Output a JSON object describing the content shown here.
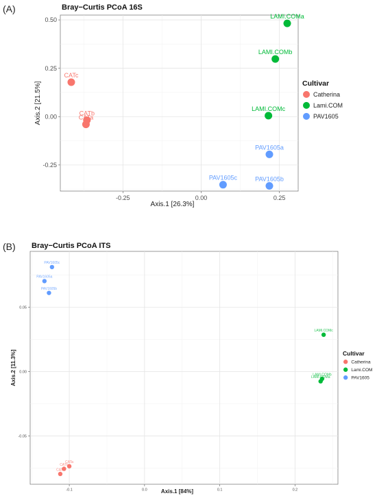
{
  "panels": [
    {
      "label": "(A)",
      "chart_data": {
        "type": "scatter",
        "title": "Bray−Curtis PCoA 16S",
        "xlabel": "Axis.1   [26.3%]",
        "ylabel": "Axis.2   [21.5%]",
        "xlim": [
          -0.45,
          0.31
        ],
        "ylim": [
          -0.385,
          0.525
        ],
        "xticks": [
          {
            "v": -0.25,
            "t": "-0.25"
          },
          {
            "v": 0.0,
            "t": "0.00"
          },
          {
            "v": 0.25,
            "t": "0.25"
          }
        ],
        "yticks": [
          {
            "v": -0.25,
            "t": "-0.25"
          },
          {
            "v": 0.0,
            "t": "0.00"
          },
          {
            "v": 0.25,
            "t": "0.25"
          },
          {
            "v": 0.5,
            "t": "0.50"
          }
        ],
        "grid": true,
        "legend": {
          "title": "Cultivar",
          "position": "right"
        },
        "series": [
          {
            "name": "Catherina",
            "color": "#F8766D",
            "points": [
              {
                "x": -0.415,
                "y": 0.178,
                "label": "CATc"
              },
              {
                "x": -0.365,
                "y": -0.018,
                "label": "CATb"
              },
              {
                "x": -0.368,
                "y": -0.04,
                "label": "CATa"
              }
            ]
          },
          {
            "name": "Lami.COM",
            "color": "#00BA38",
            "points": [
              {
                "x": 0.275,
                "y": 0.482,
                "label": "LAMI.COMa"
              },
              {
                "x": 0.237,
                "y": 0.298,
                "label": "LAMI.COMb"
              },
              {
                "x": 0.215,
                "y": 0.005,
                "label": "LAMI.COMc"
              }
            ]
          },
          {
            "name": "PAV1605",
            "color": "#619CFF",
            "points": [
              {
                "x": 0.218,
                "y": -0.195,
                "label": "PAV1605a"
              },
              {
                "x": 0.218,
                "y": -0.358,
                "label": "PAV1605b"
              },
              {
                "x": 0.07,
                "y": -0.352,
                "label": "PAV1605c"
              }
            ]
          }
        ]
      }
    },
    {
      "label": "(B)",
      "chart_data": {
        "type": "scatter",
        "title": "Bray−Curtis PCoA ITS",
        "xlabel": "Axis.1   [84%]",
        "ylabel": "Axis.2   [11.3%]",
        "xlim": [
          -0.152,
          0.257
        ],
        "ylim": [
          -0.0875,
          0.0935
        ],
        "xticks": [
          {
            "v": -0.1,
            "t": "-0.1"
          },
          {
            "v": 0.0,
            "t": "0.0"
          },
          {
            "v": 0.1,
            "t": "0.1"
          },
          {
            "v": 0.2,
            "t": "0.2"
          }
        ],
        "yticks": [
          {
            "v": -0.05,
            "t": "-0.05"
          },
          {
            "v": 0.0,
            "t": "0.00"
          },
          {
            "v": 0.05,
            "t": "0.05"
          }
        ],
        "grid": true,
        "legend": {
          "title": "Cultivar",
          "position": "right"
        },
        "series": [
          {
            "name": "Catherina",
            "color": "#F8766D",
            "points": [
              {
                "x": -0.1,
                "y": -0.0735,
                "label": "CATa"
              },
              {
                "x": -0.107,
                "y": -0.0755,
                "label": "CATb"
              },
              {
                "x": -0.112,
                "y": -0.0795,
                "label": "CATc"
              }
            ]
          },
          {
            "name": "Lami.COM",
            "color": "#00BA38",
            "points": [
              {
                "x": 0.238,
                "y": 0.0287,
                "label": "LAMI.COMc"
              },
              {
                "x": 0.236,
                "y": -0.0055,
                "label": "LAMI.COMb"
              },
              {
                "x": 0.234,
                "y": -0.0075,
                "label": "LAMI.COMa"
              }
            ]
          },
          {
            "name": "PAV1605",
            "color": "#619CFF",
            "points": [
              {
                "x": -0.123,
                "y": 0.0813,
                "label": "PAV1605c"
              },
              {
                "x": -0.133,
                "y": 0.0704,
                "label": "PAV1605a"
              },
              {
                "x": -0.127,
                "y": 0.0612,
                "label": "PAV1605b"
              }
            ]
          }
        ]
      }
    }
  ]
}
